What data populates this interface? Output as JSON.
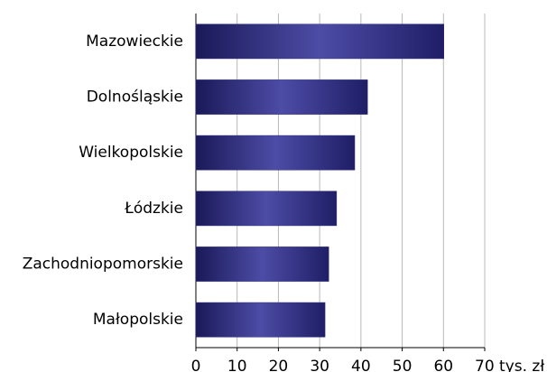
{
  "chart_data": {
    "type": "bar",
    "orientation": "horizontal",
    "categories": [
      "Mazowieckie",
      "Dolnośląskie",
      "Wielkopolskie",
      "Łódzkie",
      "Zachodniopomorskie",
      "Małopolskie"
    ],
    "values": [
      60.1,
      41.6,
      38.5,
      34.1,
      32.2,
      31.3
    ],
    "color": "#2e2d7f",
    "xlim": [
      0,
      70
    ],
    "xticks": [
      0,
      10,
      20,
      30,
      40,
      50,
      60,
      {
        "value": 70,
        "label": "70 tys. zł"
      }
    ],
    "grid": true
  }
}
